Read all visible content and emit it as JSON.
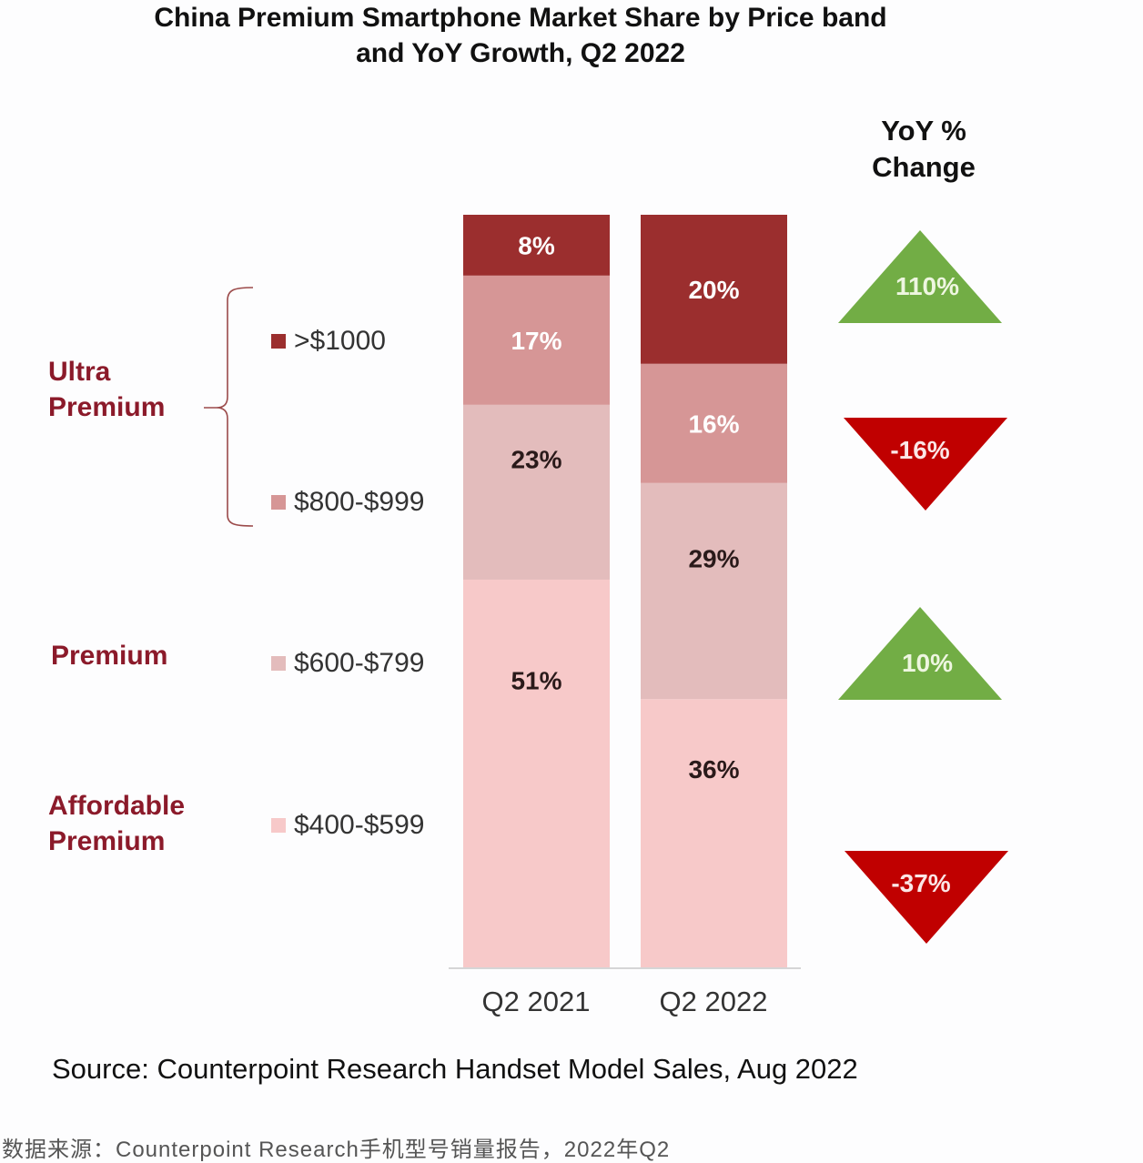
{
  "chart_data": {
    "type": "bar",
    "stacked": true,
    "title": "China Premium Smartphone Market Share by Price band and YoY Growth, Q2 2022",
    "title_lines": [
      "China Premium Smartphone Market Share by Price band",
      "and YoY Growth, Q2 2022"
    ],
    "categories": [
      "Q2 2021",
      "Q2 2022"
    ],
    "series": [
      {
        "name": "$400-$599",
        "color": "#f7c9c9",
        "values": [
          51,
          36
        ],
        "labels": [
          "51%",
          "36%"
        ],
        "label_color": "#2a1a1a"
      },
      {
        "name": "$600-$799",
        "color": "#e3bcbc",
        "values": [
          23,
          29
        ],
        "labels": [
          "23%",
          "29%"
        ],
        "label_color": "#2a1a1a"
      },
      {
        "name": "$800-$999",
        "color": "#d69696",
        "values": [
          17,
          16
        ],
        "labels": [
          "17%",
          "16%"
        ],
        "label_color": "#ffffff"
      },
      {
        "name": ">$1000",
        "color": "#9b2e2e",
        "values": [
          8,
          20
        ],
        "labels": [
          "8%",
          "20%"
        ],
        "label_color": "#ffffff"
      }
    ],
    "unit": "%",
    "legend": {
      "placement": "left",
      "items": [
        ">$1000",
        "$800-$999",
        "$600-$799",
        "$400-$599"
      ]
    },
    "groups": [
      {
        "label_lines": [
          "Ultra",
          "Premium"
        ],
        "bands": [
          ">$1000",
          "$800-$999"
        ]
      },
      {
        "label_lines": [
          "Premium"
        ],
        "bands": [
          "$600-$799"
        ]
      },
      {
        "label_lines": [
          "Affordable",
          "Premium"
        ],
        "bands": [
          "$400-$599"
        ]
      }
    ],
    "yoy_change": {
      "title_lines": [
        "YoY %",
        "Change"
      ],
      "items": [
        {
          "band": ">$1000",
          "value": 110,
          "label": "110%",
          "direction": "up",
          "color": "#72ad45"
        },
        {
          "band": "$800-$999",
          "value": -16,
          "label": "-16%",
          "direction": "down",
          "color": "#c00000"
        },
        {
          "band": "$600-$799",
          "value": 10,
          "label": "10%",
          "direction": "up",
          "color": "#72ad45"
        },
        {
          "band": "$400-$599",
          "value": -37,
          "label": "-37%",
          "direction": "down",
          "color": "#c00000"
        }
      ]
    },
    "xlabel": "",
    "ylabel": "",
    "grid": false
  },
  "footer": {
    "source": "Source: Counterpoint Research Handset Model Sales, Aug 2022",
    "cn_source": "数据来源：Counterpoint Research手机型号销量报告，2022年Q2"
  },
  "colors": {
    "group_label": "#8b1a2a",
    "brace": "#9b4a4a",
    "axis": "#c8c8c8"
  }
}
